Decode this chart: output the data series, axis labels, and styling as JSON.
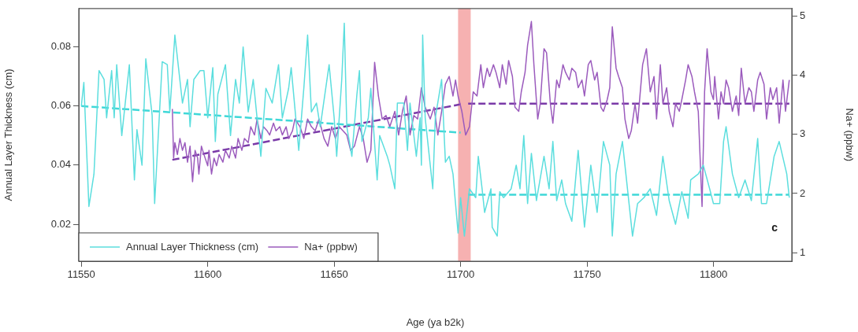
{
  "chart_data": {
    "type": "line",
    "xlabel": "Age (ya b2k)",
    "ylabel": "Annual Layer Thickness (cm)",
    "y2label": "Na+ (ppbw)",
    "xlim": [
      11549,
      11831
    ],
    "xticks": [
      11550,
      11600,
      11650,
      11700,
      11750,
      11800
    ],
    "ylim": [
      0.0075,
      0.093
    ],
    "yticks": [
      0.02,
      0.04,
      0.06,
      0.08
    ],
    "y2lim": [
      0.855,
      5.13
    ],
    "y2ticks": [
      1,
      2,
      3,
      4,
      5
    ],
    "grid": false,
    "legend": "bottom left",
    "marker": "none",
    "bands": [
      {
        "axis": "x",
        "from": 11699,
        "to": 11704,
        "color": "#f5a3a3"
      }
    ],
    "annotations": [
      "c"
    ],
    "series": [
      {
        "name": "Annual Layer Thickness (cm)",
        "color": "#5cdede",
        "line_style": "solid",
        "x": [
          11550,
          11551,
          11553,
          11555,
          11557,
          11559,
          11560,
          11562,
          11563,
          11564,
          11566,
          11569,
          11571,
          11572,
          11574,
          11575.5,
          11578,
          11579,
          11582,
          11584,
          11585,
          11587,
          11590,
          11592,
          11593,
          11594.5,
          11597,
          11598.5,
          11600,
          11602,
          11603,
          11604,
          11607,
          11609,
          11611,
          11612.5,
          11614,
          11616,
          11618,
          11621,
          11623,
          11625.5,
          11628,
          11629.5,
          11632,
          11633,
          11636,
          11638,
          11639.5,
          11641,
          11643,
          11644.5,
          11648,
          11650,
          11651,
          11653,
          11654,
          11655,
          11657,
          11659,
          11660,
          11661,
          11663.5,
          11664.5,
          11667,
          11668,
          11671,
          11672,
          11674,
          11675,
          11677.5,
          11679,
          11680,
          11682.5,
          11684,
          11684.5,
          11685,
          11686,
          11689,
          11690,
          11692.5,
          11694,
          11695.5,
          11697,
          11698,
          11699,
          11700,
          11701.5,
          11703.5,
          11706,
          11707,
          11708.5,
          11709.5,
          11712,
          11712.5,
          11714.5,
          11715.5,
          11717,
          11720,
          11722,
          11723.5,
          11725,
          11726.5,
          11728,
          11730,
          11733,
          11735,
          11736.5,
          11738,
          11740,
          11741.5,
          11744,
          11746.5,
          11749,
          11751.5,
          11754,
          11756.5,
          11759,
          11760,
          11761.5,
          11764,
          11768,
          11770,
          11772.5,
          11775,
          11777.5,
          11780,
          11782.5,
          11785,
          11787.5,
          11790,
          11791,
          11794,
          11796,
          11798.5,
          11800,
          11802.5,
          11804,
          11805,
          11807.5,
          11810,
          11812.5,
          11815,
          11817.5,
          11819,
          11821,
          11824,
          11826,
          11829,
          11830
        ],
        "values": [
          0.06,
          0.068,
          0.026,
          0.037,
          0.072,
          0.069,
          0.056,
          0.072,
          0.056,
          0.074,
          0.05,
          0.074,
          0.035,
          0.052,
          0.04,
          0.076,
          0.057,
          0.027,
          0.075,
          0.074,
          0.058,
          0.084,
          0.061,
          0.069,
          0.053,
          0.069,
          0.072,
          0.072,
          0.056,
          0.073,
          0.048,
          0.064,
          0.074,
          0.05,
          0.069,
          0.061,
          0.08,
          0.058,
          0.069,
          0.043,
          0.066,
          0.061,
          0.074,
          0.056,
          0.066,
          0.073,
          0.045,
          0.066,
          0.084,
          0.058,
          0.061,
          0.053,
          0.074,
          0.056,
          0.043,
          0.069,
          0.088,
          0.053,
          0.043,
          0.064,
          0.072,
          0.048,
          0.056,
          0.066,
          0.035,
          0.05,
          0.043,
          0.04,
          0.032,
          0.061,
          0.061,
          0.045,
          0.061,
          0.043,
          0.056,
          0.04,
          0.084,
          0.056,
          0.032,
          0.056,
          0.069,
          0.041,
          0.043,
          0.037,
          0.027,
          0.017,
          0.029,
          0.016,
          0.032,
          0.029,
          0.043,
          0.032,
          0.024,
          0.032,
          0.019,
          0.016,
          0.031,
          0.029,
          0.032,
          0.04,
          0.032,
          0.05,
          0.027,
          0.044,
          0.028,
          0.043,
          0.032,
          0.048,
          0.028,
          0.035,
          0.027,
          0.021,
          0.045,
          0.019,
          0.04,
          0.024,
          0.048,
          0.04,
          0.016,
          0.037,
          0.048,
          0.016,
          0.027,
          0.029,
          0.032,
          0.023,
          0.043,
          0.028,
          0.02,
          0.031,
          0.022,
          0.035,
          0.037,
          0.04,
          0.032,
          0.027,
          0.027,
          0.048,
          0.053,
          0.037,
          0.029,
          0.035,
          0.028,
          0.049,
          0.027,
          0.027,
          0.043,
          0.048,
          0.037,
          0.029
        ]
      },
      {
        "name": "Na+ (ppbw)",
        "color": "#9b5bbd",
        "axis": "y2",
        "line_style": "solid",
        "x": [
          11586,
          11586.5,
          11587,
          11588,
          11589,
          11590,
          11591,
          11592,
          11593,
          11594,
          11595,
          11596,
          11596.5,
          11597.5,
          11598.5,
          11600,
          11600.5,
          11601.5,
          11602.5,
          11603.5,
          11604.5,
          11606,
          11607,
          11608.5,
          11609.5,
          11611,
          11612,
          11613.5,
          11614.5,
          11616,
          11617,
          11618.5,
          11619.5,
          11621,
          11622,
          11623.5,
          11624.5,
          11626,
          11627,
          11628.5,
          11629.5,
          11631,
          11632,
          11633.5,
          11634.5,
          11636.5,
          11638,
          11639.5,
          11641,
          11642.5,
          11644,
          11646,
          11647.5,
          11649,
          11650.5,
          11652,
          11655,
          11656.5,
          11658,
          11660,
          11661.5,
          11663,
          11664.5,
          11666,
          11667.5,
          11669,
          11670.5,
          11672,
          11674,
          11675.5,
          11677,
          11678.5,
          11680,
          11681.5,
          11683,
          11684.5,
          11686,
          11688,
          11689.5,
          11691,
          11692.5,
          11694,
          11695.5,
          11697,
          11698,
          11699,
          11700.5,
          11702,
          11703.5,
          11705,
          11706.5,
          11708,
          11709,
          11710.5,
          11711.5,
          11713,
          11714,
          11715.5,
          11716.5,
          11718,
          11719,
          11720.5,
          11721.5,
          11723,
          11724,
          11725.5,
          11726.5,
          11728,
          11729,
          11730.5,
          11731.5,
          11733,
          11734,
          11735.5,
          11736.5,
          11738,
          11739,
          11740.5,
          11741.5,
          11743,
          11744,
          11745.5,
          11746.5,
          11748,
          11749,
          11750.5,
          11751.5,
          11753,
          11754,
          11755.5,
          11756.5,
          11758,
          11759,
          11760,
          11761.5,
          11762.5,
          11764,
          11765,
          11766.5,
          11767.5,
          11769,
          11770,
          11772,
          11773.5,
          11775,
          11776.5,
          11777.5,
          11779,
          11780,
          11781.5,
          11782.5,
          11784,
          11785,
          11786.5,
          11787.5,
          11789,
          11790,
          11791.5,
          11792.5,
          11794,
          11795.5,
          11796.5,
          11797.5,
          11799,
          11800,
          11800.5,
          11802,
          11803,
          11804,
          11805,
          11806,
          11807.5,
          11809,
          11810,
          11811,
          11812.5,
          11814,
          11815,
          11816,
          11817.5,
          11818.5,
          11820,
          11821,
          11822.5,
          11823.5,
          11825,
          11826,
          11827.5,
          11828.5,
          11830
        ],
        "values": [
          3.43,
          2.6,
          2.86,
          2.66,
          2.93,
          2.73,
          2.86,
          2.53,
          2.8,
          2.2,
          2.73,
          2.6,
          2.33,
          2.8,
          2.66,
          2.47,
          2.73,
          2.33,
          2.6,
          2.47,
          2.66,
          2.53,
          2.73,
          2.6,
          2.8,
          2.6,
          2.93,
          2.73,
          2.93,
          2.86,
          3.13,
          2.99,
          3.26,
          2.93,
          3.13,
          3.06,
          2.99,
          3.19,
          3.06,
          3.13,
          2.99,
          3.13,
          2.93,
          3.06,
          3.26,
          3.13,
          2.93,
          3.26,
          3.13,
          3.06,
          3.26,
          2.93,
          2.8,
          3.13,
          2.93,
          3.13,
          2.99,
          2.73,
          2.8,
          3.13,
          2.93,
          2.53,
          2.73,
          4.22,
          3.65,
          3.26,
          3.32,
          3.13,
          3.39,
          2.99,
          3.39,
          3.65,
          2.99,
          3.32,
          3.26,
          3.79,
          3.46,
          3.26,
          3.46,
          2.99,
          3.39,
          3.85,
          3.98,
          3.65,
          3.92,
          3.65,
          3.39,
          2.99,
          3.13,
          3.72,
          3.65,
          4.18,
          3.79,
          4.12,
          3.98,
          4.18,
          4.05,
          3.79,
          4.18,
          3.85,
          4.25,
          3.98,
          3.46,
          3.39,
          3.72,
          4.05,
          4.51,
          4.91,
          4.18,
          3.26,
          3.52,
          4.45,
          4.38,
          3.52,
          3.19,
          3.92,
          3.79,
          4.18,
          4.05,
          3.92,
          4.12,
          4.05,
          3.79,
          3.92,
          3.65,
          4.18,
          4.25,
          3.92,
          4.05,
          3.46,
          3.39,
          3.59,
          3.79,
          4.82,
          4.12,
          3.98,
          3.79,
          3.26,
          2.93,
          3.06,
          3.52,
          3.19,
          4.18,
          4.45,
          3.72,
          3.98,
          3.26,
          4.18,
          3.52,
          3.79,
          3.39,
          3.13,
          3.52,
          3.39,
          3.59,
          3.92,
          4.18,
          3.98,
          3.72,
          3.39,
          1.78,
          3.72,
          4.45,
          3.72,
          3.59,
          3.98,
          3.26,
          3.72,
          3.52,
          3.92,
          3.79,
          3.39,
          3.65,
          3.32,
          4.12,
          3.52,
          3.79,
          3.72,
          3.39,
          3.92,
          4.05,
          3.85,
          3.26,
          3.79,
          3.59,
          3.79,
          3.19,
          3.92,
          3.39,
          3.92
        ]
      },
      {
        "color": "#3fd8d8",
        "line_style": "dashed",
        "x": [
          11550,
          11700
        ],
        "values": [
          0.06,
          0.051
        ]
      },
      {
        "color": "#3fd8d8",
        "line_style": "dashed",
        "x": [
          11703,
          11830
        ],
        "values": [
          0.03,
          0.03
        ]
      },
      {
        "color": "#7a3aa8",
        "axis": "y2",
        "line_style": "dashed",
        "x": [
          11586,
          11700
        ],
        "values": [
          2.57,
          3.51
        ]
      },
      {
        "color": "#7a3aa8",
        "axis": "y2",
        "line_style": "dashed",
        "x": [
          11703,
          11830
        ],
        "values": [
          3.52,
          3.52
        ]
      }
    ]
  }
}
